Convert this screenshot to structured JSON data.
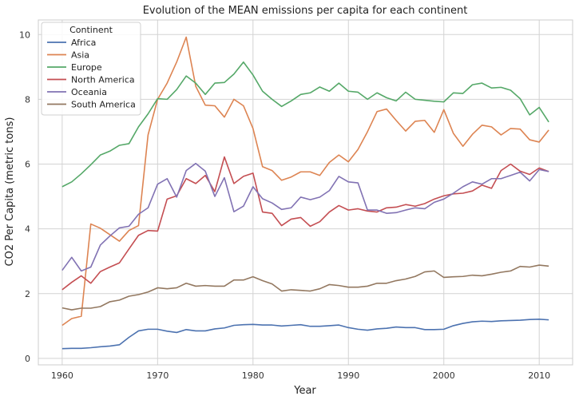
{
  "chart_data": {
    "type": "line",
    "title": "Evolution of the MEAN emissions per capita for each continent",
    "xlabel": "Year",
    "ylabel": "CO2 Per Capita (metric tons)",
    "xlim": [
      1957.5,
      2013.5
    ],
    "ylim": [
      -0.2,
      10.45
    ],
    "xticks": [
      1960,
      1970,
      1980,
      1990,
      2000,
      2010
    ],
    "yticks": [
      0,
      2,
      4,
      6,
      8,
      10
    ],
    "grid": true,
    "legend": {
      "title": "Continent",
      "placement": "top-left"
    },
    "x": [
      1960,
      1961,
      1962,
      1963,
      1964,
      1965,
      1966,
      1967,
      1968,
      1969,
      1970,
      1971,
      1972,
      1973,
      1974,
      1975,
      1976,
      1977,
      1978,
      1979,
      1980,
      1981,
      1982,
      1983,
      1984,
      1985,
      1986,
      1987,
      1988,
      1989,
      1990,
      1991,
      1992,
      1993,
      1994,
      1995,
      1996,
      1997,
      1998,
      1999,
      2000,
      2001,
      2002,
      2003,
      2004,
      2005,
      2006,
      2007,
      2008,
      2009,
      2010,
      2011
    ],
    "series": [
      {
        "name": "Africa",
        "color": "#4c72b0",
        "values": [
          0.3,
          0.31,
          0.31,
          0.33,
          0.36,
          0.38,
          0.42,
          0.65,
          0.85,
          0.9,
          0.9,
          0.84,
          0.8,
          0.89,
          0.85,
          0.85,
          0.91,
          0.94,
          1.02,
          1.04,
          1.05,
          1.03,
          1.03,
          1.0,
          1.02,
          1.04,
          0.99,
          0.99,
          1.01,
          1.03,
          0.95,
          0.9,
          0.87,
          0.91,
          0.93,
          0.97,
          0.95,
          0.95,
          0.89,
          0.89,
          0.9,
          1.01,
          1.08,
          1.13,
          1.15,
          1.14,
          1.16,
          1.17,
          1.18,
          1.2,
          1.21,
          1.19
        ]
      },
      {
        "name": "Asia",
        "color": "#dd8452",
        "values": [
          1.02,
          1.23,
          1.3,
          4.15,
          4.02,
          3.82,
          3.62,
          3.95,
          4.1,
          6.9,
          8.0,
          8.5,
          9.15,
          9.92,
          8.4,
          7.82,
          7.8,
          7.45,
          8.0,
          7.8,
          7.1,
          5.92,
          5.8,
          5.5,
          5.6,
          5.76,
          5.76,
          5.65,
          6.05,
          6.28,
          6.07,
          6.45,
          7.0,
          7.62,
          7.7,
          7.35,
          7.02,
          7.32,
          7.35,
          6.98,
          7.68,
          6.95,
          6.55,
          6.92,
          7.2,
          7.15,
          6.9,
          7.1,
          7.08,
          6.75,
          6.68,
          7.05
        ]
      },
      {
        "name": "Europe",
        "color": "#55a868",
        "values": [
          5.3,
          5.45,
          5.7,
          5.98,
          6.28,
          6.4,
          6.58,
          6.63,
          7.15,
          7.55,
          8.02,
          8.0,
          8.3,
          8.72,
          8.5,
          8.15,
          8.5,
          8.52,
          8.78,
          9.15,
          8.75,
          8.25,
          8.0,
          7.78,
          7.95,
          8.15,
          8.2,
          8.38,
          8.25,
          8.5,
          8.25,
          8.22,
          8.0,
          8.2,
          8.05,
          7.95,
          8.22,
          8.0,
          7.97,
          7.94,
          7.92,
          8.2,
          8.18,
          8.45,
          8.5,
          8.35,
          8.37,
          8.28,
          8.02,
          7.52,
          7.75,
          7.3
        ]
      },
      {
        "name": "North America",
        "color": "#c44e52",
        "values": [
          2.12,
          2.35,
          2.55,
          2.32,
          2.68,
          2.82,
          2.95,
          3.38,
          3.8,
          3.95,
          3.93,
          4.92,
          5.02,
          5.55,
          5.4,
          5.65,
          5.15,
          6.22,
          5.4,
          5.62,
          5.72,
          4.52,
          4.48,
          4.1,
          4.3,
          4.35,
          4.08,
          4.22,
          4.52,
          4.72,
          4.58,
          4.62,
          4.55,
          4.52,
          4.65,
          4.67,
          4.75,
          4.7,
          4.78,
          4.92,
          5.02,
          5.08,
          5.1,
          5.17,
          5.35,
          5.25,
          5.8,
          6.0,
          5.78,
          5.68,
          5.88,
          5.77
        ]
      },
      {
        "name": "Oceania",
        "color": "#8172b3",
        "values": [
          2.72,
          3.12,
          2.7,
          2.82,
          3.5,
          3.78,
          4.03,
          4.08,
          4.45,
          4.65,
          5.38,
          5.55,
          4.98,
          5.8,
          6.02,
          5.78,
          5.0,
          5.58,
          4.53,
          4.7,
          5.3,
          4.93,
          4.8,
          4.6,
          4.65,
          4.98,
          4.9,
          4.98,
          5.18,
          5.62,
          5.45,
          5.42,
          4.58,
          4.58,
          4.48,
          4.5,
          4.58,
          4.65,
          4.62,
          4.82,
          4.92,
          5.1,
          5.3,
          5.45,
          5.38,
          5.55,
          5.55,
          5.65,
          5.75,
          5.48,
          5.83,
          5.77
        ]
      },
      {
        "name": "South America",
        "color": "#937860",
        "values": [
          1.56,
          1.5,
          1.55,
          1.55,
          1.6,
          1.75,
          1.8,
          1.92,
          1.97,
          2.05,
          2.18,
          2.15,
          2.18,
          2.32,
          2.23,
          2.25,
          2.23,
          2.23,
          2.42,
          2.42,
          2.52,
          2.4,
          2.3,
          2.08,
          2.12,
          2.1,
          2.08,
          2.15,
          2.28,
          2.25,
          2.2,
          2.2,
          2.23,
          2.32,
          2.32,
          2.4,
          2.45,
          2.53,
          2.67,
          2.7,
          2.5,
          2.52,
          2.53,
          2.57,
          2.55,
          2.6,
          2.66,
          2.7,
          2.84,
          2.82,
          2.88,
          2.85
        ]
      }
    ]
  }
}
